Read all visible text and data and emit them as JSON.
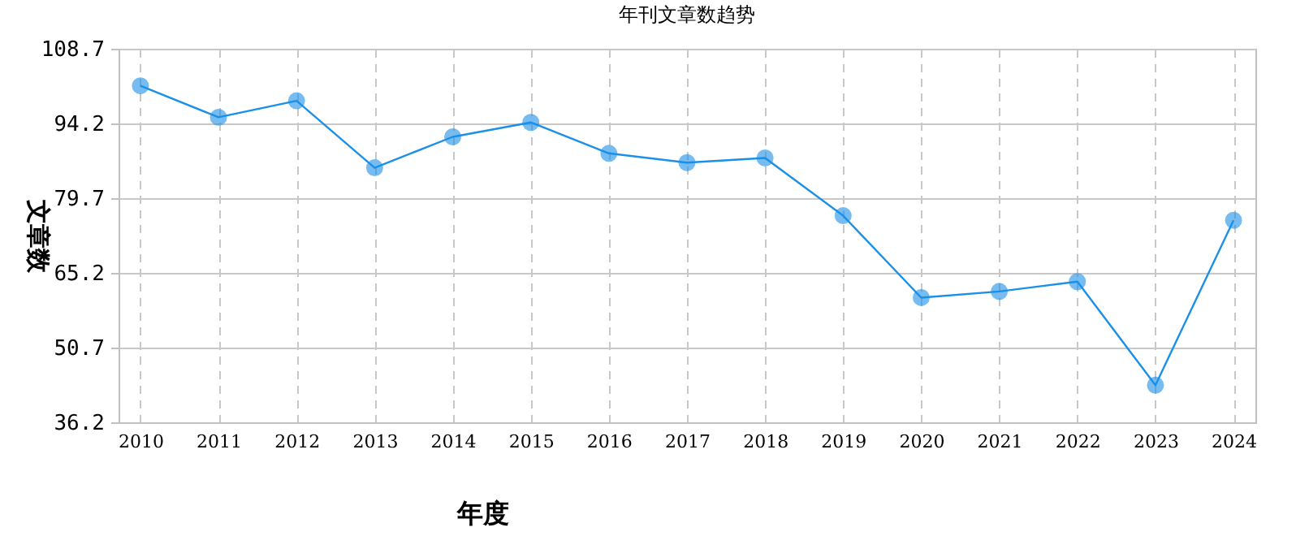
{
  "chart_data": {
    "type": "line",
    "title": "年刊文章数趋势",
    "xlabel": "年度",
    "ylabel": "文章数",
    "categories": [
      "2010",
      "2011",
      "2012",
      "2013",
      "2014",
      "2015",
      "2016",
      "2017",
      "2018",
      "2019",
      "2020",
      "2021",
      "2022",
      "2023",
      "2024"
    ],
    "series": [
      {
        "color": "#1a90e8",
        "values": [
          101.5,
          95.4,
          98.6,
          85.6,
          91.6,
          94.4,
          88.4,
          86.6,
          87.5,
          76.3,
          60.4,
          61.6,
          63.5,
          43.4,
          75.4
        ]
      }
    ],
    "ylim": [
      36.2,
      108.7
    ],
    "yticks": [
      36.2,
      50.7,
      65.2,
      79.7,
      94.2,
      108.7
    ],
    "grid": true,
    "marker": "circle",
    "line_style": "solid"
  }
}
